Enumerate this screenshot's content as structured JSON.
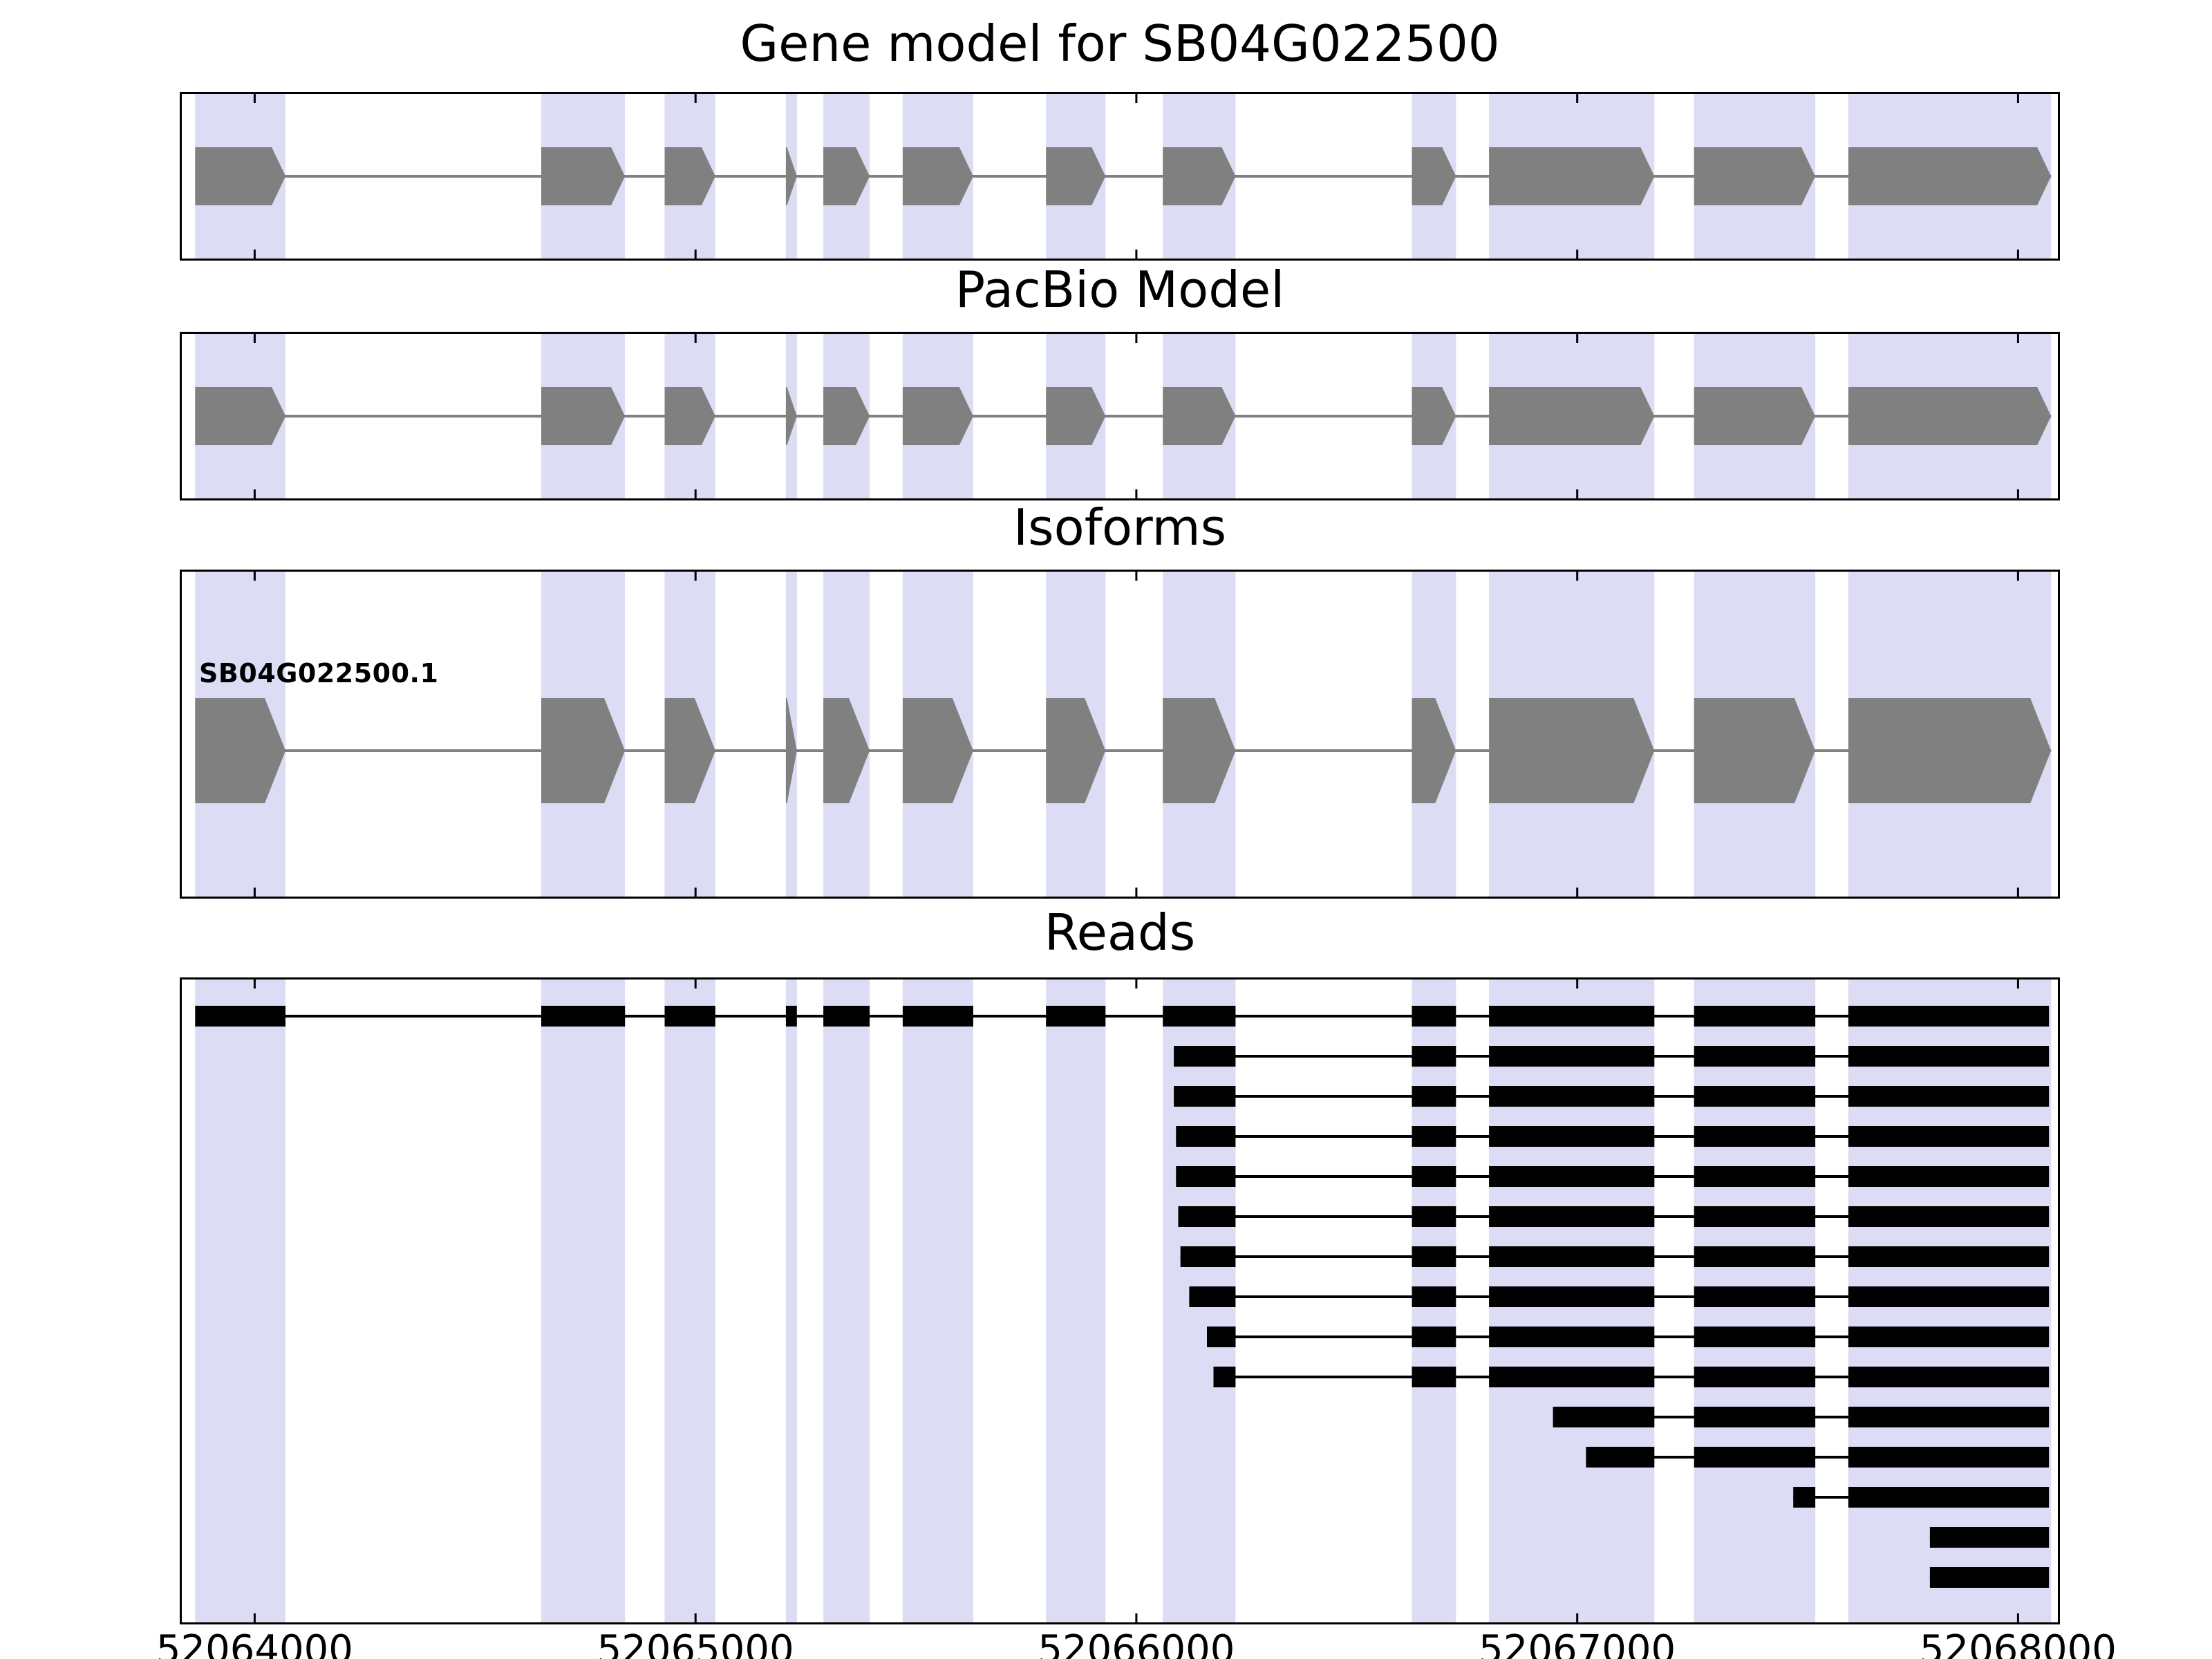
{
  "panels": {
    "gene_model": {
      "title": "Gene model for SB04G022500"
    },
    "pacbio": {
      "title": "PacBio Model"
    },
    "isoforms": {
      "title": "Isoforms",
      "isoform_label": "SB04G022500.1"
    },
    "reads": {
      "title": "Reads"
    }
  },
  "colors": {
    "exon": "#808080",
    "read": "#000000",
    "band": "#dcdcf4",
    "axis": "#000000",
    "background": "#ffffff"
  },
  "chart_data": {
    "type": "other",
    "subtype": "genome-browser-tracks",
    "title": "Gene model for SB04G022500",
    "gene_id": "SB04G022500",
    "isoform_id": "SB04G022500.1",
    "strand": "+",
    "x_range": [
      52063830,
      52068095
    ],
    "xticks": [
      52064000,
      52065000,
      52066000,
      52067000,
      52068000
    ],
    "xtick_labels": [
      "52064000",
      "52065000",
      "52066000",
      "52067000",
      "52068000"
    ],
    "track_titles": [
      "Gene model for SB04G022500",
      "PacBio Model",
      "Isoforms",
      "Reads"
    ],
    "gene_exons": [
      [
        52063865,
        52064070
      ],
      [
        52064650,
        52064840
      ],
      [
        52064930,
        52065045
      ],
      [
        52065205,
        52065230
      ],
      [
        52065290,
        52065395
      ],
      [
        52065470,
        52065630
      ],
      [
        52065795,
        52065930
      ],
      [
        52066060,
        52066225
      ],
      [
        52066625,
        52066725
      ],
      [
        52066800,
        52067175
      ],
      [
        52067265,
        52067540
      ],
      [
        52067615,
        52068075
      ]
    ],
    "reads": [
      {
        "start": 52063865,
        "end": 52068070
      },
      {
        "start": 52066085,
        "end": 52068070
      },
      {
        "start": 52066085,
        "end": 52068070
      },
      {
        "start": 52066090,
        "end": 52068070
      },
      {
        "start": 52066090,
        "end": 52068070
      },
      {
        "start": 52066095,
        "end": 52068070
      },
      {
        "start": 52066100,
        "end": 52068070
      },
      {
        "start": 52066120,
        "end": 52068070
      },
      {
        "start": 52066160,
        "end": 52068070
      },
      {
        "start": 52066175,
        "end": 52068070
      },
      {
        "start": 52066945,
        "end": 52068070
      },
      {
        "start": 52067020,
        "end": 52068070
      },
      {
        "start": 52067490,
        "end": 52068070
      },
      {
        "start": 52067800,
        "end": 52068070
      },
      {
        "start": 52067800,
        "end": 52068070
      }
    ]
  }
}
